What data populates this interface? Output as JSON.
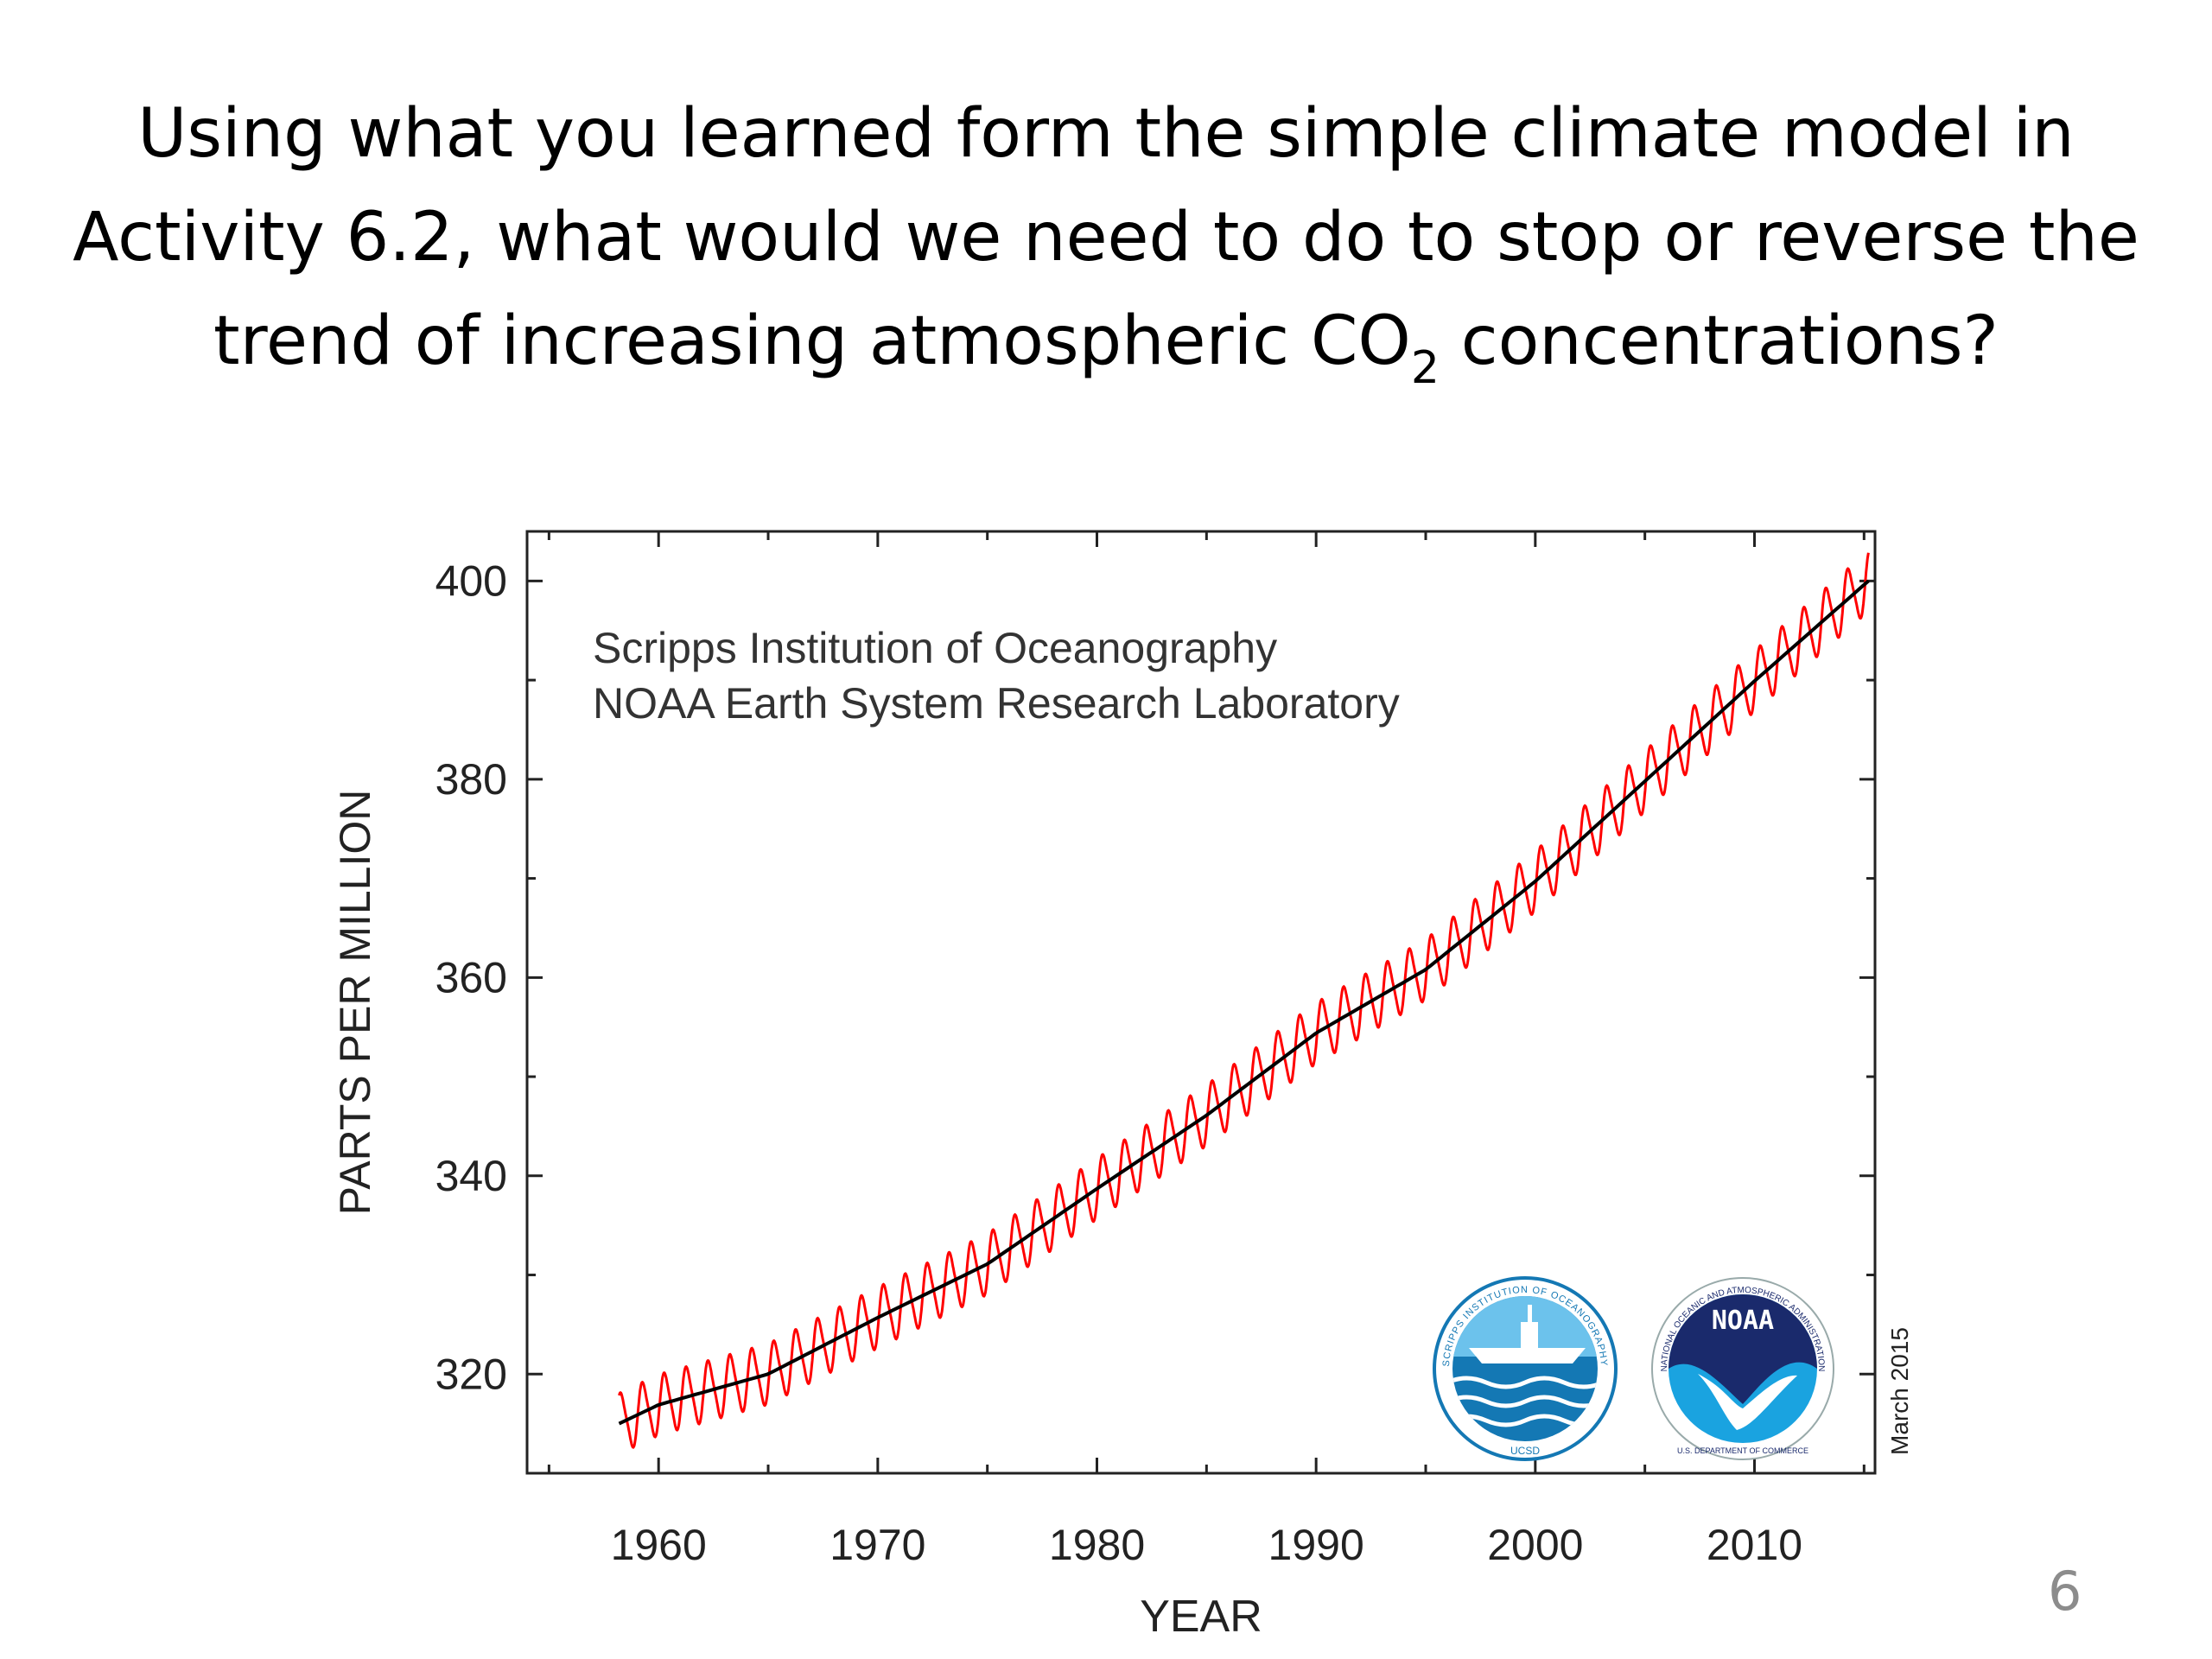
{
  "slide": {
    "title_part1": "Using what you learned form the simple climate model in Activity 6.2, what would we need to do to stop or reverse the trend of increasing atmospheric CO",
    "title_sub": "2",
    "title_part2": " concentrations?",
    "page_number": "6"
  },
  "logos": {
    "scripps_ring_text": "SCRIPPS INSTITUTION OF OCEANOGRAPHY",
    "scripps_bottom_text": "UCSD",
    "noaa_label": "NOAA",
    "noaa_ring_text": "NATIONAL OCEANIC AND ATMOSPHERIC ADMINISTRATION",
    "noaa_bottom_text": "U.S. DEPARTMENT OF COMMERCE",
    "noaa_navy": "#1a2a6c",
    "noaa_blue": "#1aa3e0",
    "scripps_blue": "#1478b4"
  },
  "chart_data": {
    "type": "line",
    "title": "",
    "annotation_lines": [
      "Scripps Institution of Oceanography",
      "NOAA Earth System Research Laboratory"
    ],
    "date_note": "March 2015",
    "xlabel": "YEAR",
    "ylabel": "PARTS PER MILLION",
    "xlim": [
      1954,
      2015.5
    ],
    "ylim": [
      310,
      405
    ],
    "xticks": [
      1960,
      1970,
      1980,
      1990,
      2000,
      2010
    ],
    "yticks": [
      320,
      340,
      360,
      380,
      400
    ],
    "grid": false,
    "series": [
      {
        "name": "",
        "role": "monthly",
        "color": "#ff0000",
        "seasonal_amplitude_ppm": 3.2,
        "x": [
          1958.2,
          1960,
          1965,
          1970,
          1975,
          1980,
          1985,
          1990,
          1995,
          2000,
          2005,
          2010,
          2015.2
        ],
        "y": [
          315.0,
          316.9,
          320.0,
          325.7,
          331.1,
          338.7,
          346.1,
          354.4,
          360.8,
          369.7,
          379.8,
          389.9,
          400.0
        ]
      },
      {
        "name": "",
        "role": "trend",
        "color": "#000000",
        "x": [
          1958.2,
          1960,
          1965,
          1970,
          1975,
          1980,
          1985,
          1990,
          1995,
          2000,
          2005,
          2010,
          2015.2
        ],
        "y": [
          315.0,
          316.9,
          320.0,
          325.7,
          331.1,
          338.7,
          346.1,
          354.4,
          360.8,
          369.7,
          379.8,
          389.9,
          400.0
        ]
      }
    ]
  }
}
